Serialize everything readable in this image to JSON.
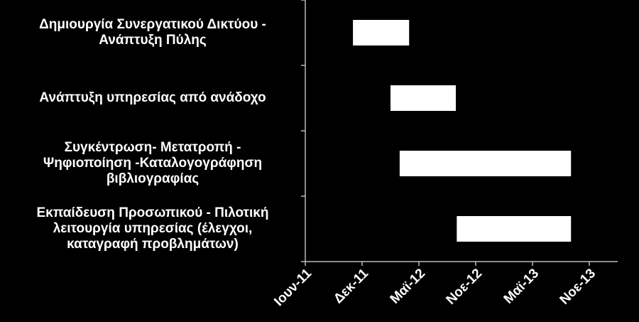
{
  "chart_data": {
    "type": "gantt",
    "categories": [
      [
        "Δημιουργία Συνεργατικού Δικτύου -",
        "Ανάπτυξη Πύλης"
      ],
      [
        "Ανάπτυξη υπηρεσίας από ανάδοχο"
      ],
      [
        "Συγκέντρωση- Μετατροπή -",
        "Ψηφιοποίηση -Καταλογογράφηση",
        "βιβλιογραφίας"
      ],
      [
        "Εκπαίδευση Προσωπικού - Πιλοτική",
        "λειτουργία υπηρεσίας (έλεγχοι,",
        "καταγραφή προβλημάτων)"
      ]
    ],
    "start": [
      40851,
      40970,
      40999,
      41180
    ],
    "end": [
      41029,
      41177,
      41542,
      41542
    ],
    "color": "#ffffff",
    "xlim": [
      40700,
      41690
    ],
    "xticks": [
      {
        "value": 40700,
        "label": "Ιουν-11"
      },
      {
        "value": 40880,
        "label": "Δεκ-11"
      },
      {
        "value": 41060,
        "label": "Μαϊ-12"
      },
      {
        "value": 41240,
        "label": "Νοε-12"
      },
      {
        "value": 41420,
        "label": "Μαϊ-13"
      },
      {
        "value": 41600,
        "label": "Νοε-13"
      }
    ]
  }
}
